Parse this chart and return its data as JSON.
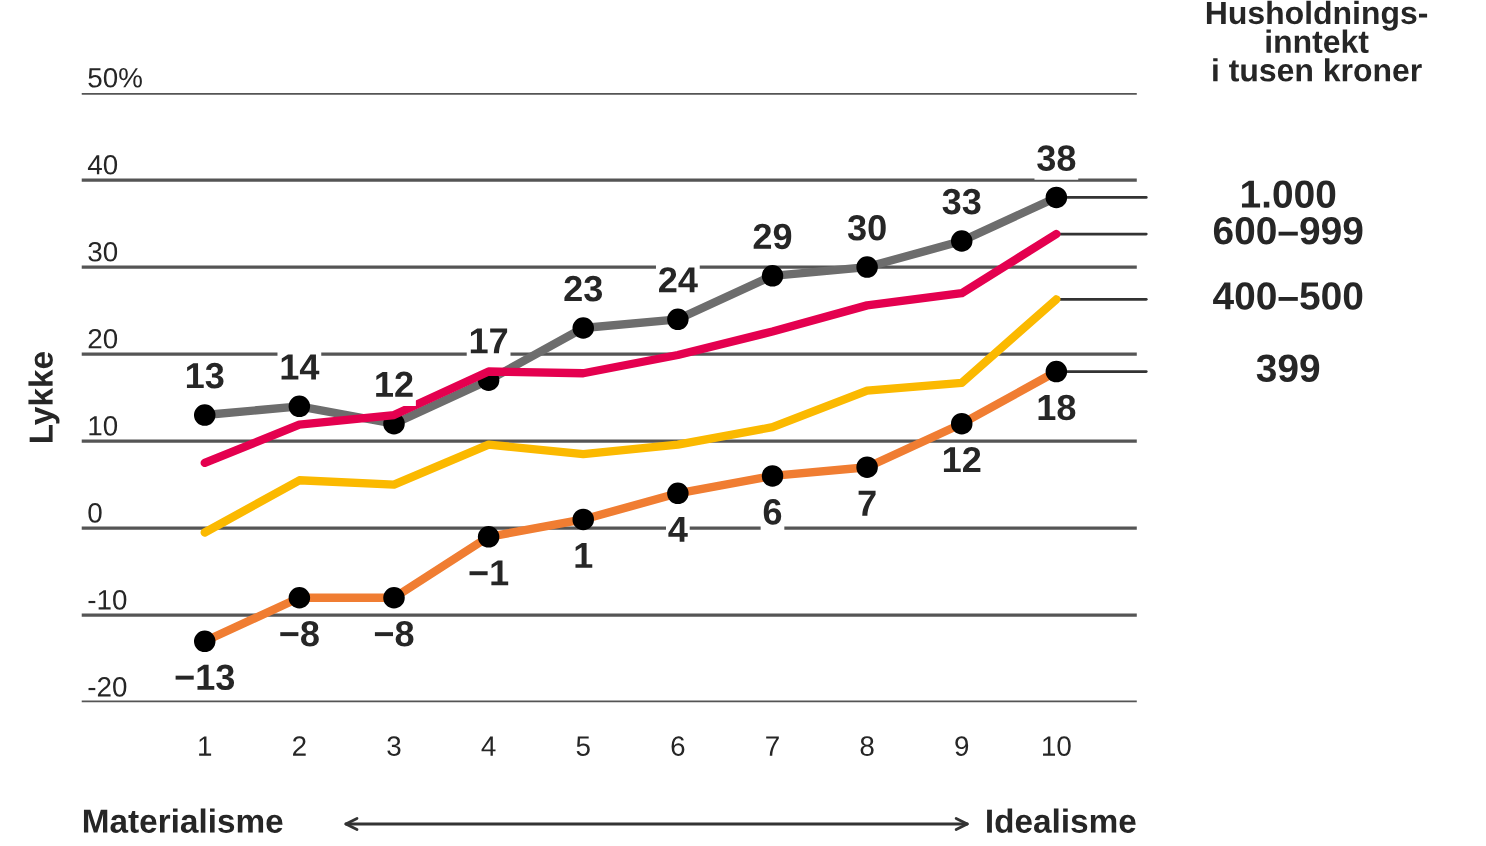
{
  "chart_data": {
    "type": "line",
    "ylabel": "Lykke",
    "legend_title": "Husholdnings-\ninntekt\ni tusen kroner",
    "x": [
      1,
      2,
      3,
      4,
      5,
      6,
      7,
      8,
      9,
      10
    ],
    "xlim": [
      -0.3,
      10.85
    ],
    "xticks": [
      1,
      2,
      3,
      4,
      5,
      6,
      7,
      8,
      9,
      10
    ],
    "ylim": [
      -20,
      50
    ],
    "yticks": [
      -20,
      -10,
      0,
      10,
      20,
      30,
      40,
      {
        "value": 50,
        "label": "50%"
      }
    ],
    "grid": "y",
    "series": [
      {
        "name": "1.000",
        "color": "#6d6d6d",
        "marker": "circle",
        "values": [
          13,
          14,
          12,
          17,
          23,
          24,
          29,
          30,
          33,
          38
        ],
        "value_labels": [
          "13",
          "14",
          "12",
          "17",
          "23",
          "24",
          "29",
          "30",
          "33",
          "38"
        ]
      },
      {
        "name": "600–999",
        "color": "#e4004f",
        "marker": "none",
        "values": [
          7.5,
          11.9,
          13,
          18,
          17.8,
          19.9,
          22.6,
          25.6,
          27,
          33.8
        ]
      },
      {
        "name": "400–500",
        "color": "#fbb900",
        "marker": "none",
        "values": [
          -0.5,
          5.5,
          5,
          9.6,
          8.5,
          9.6,
          11.6,
          15.8,
          16.7,
          26.3
        ]
      },
      {
        "name": "399",
        "color": "#f07d32",
        "marker": "circle",
        "values": [
          -13,
          -8,
          -8,
          -1,
          1,
          4,
          6,
          7,
          12,
          18
        ],
        "value_labels": [
          "−13",
          "−8",
          "−8",
          "−1",
          "1",
          "4",
          "6",
          "7",
          "12",
          "18"
        ]
      }
    ],
    "annotations": [
      "Materialisme",
      "Idealisme"
    ]
  }
}
